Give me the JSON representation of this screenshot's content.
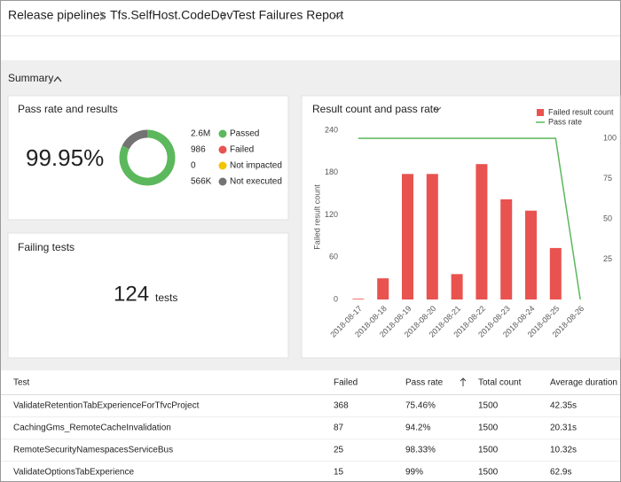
{
  "breadcrumb": {
    "items": [
      "Release pipelines",
      "Tfs.SelfHost.CodeDev",
      "Test Failures Report"
    ]
  },
  "summary": {
    "label": "Summary"
  },
  "pass_rate_card": {
    "title": "Pass rate and results",
    "pass_rate": "99.95%"
  },
  "failing_tests_card": {
    "title": "Failing tests",
    "count": "124",
    "unit": "tests"
  },
  "chart_data": [
    {
      "type": "pie",
      "donut": true,
      "categories": [
        "Passed",
        "Failed",
        "Not impacted",
        "Not executed"
      ],
      "values": [
        2600000,
        986,
        0,
        566000
      ],
      "value_labels": [
        "2.6M",
        "986",
        "0",
        "566K"
      ],
      "colors": [
        "#5cb85c",
        "#e8534f",
        "#f2c500",
        "#737373"
      ]
    },
    {
      "type": "combo",
      "title": "Result count and pass rate",
      "ylabel": "Failed result count",
      "categories": [
        "2018-08-17",
        "2018-08-18",
        "2018-08-19",
        "2018-08-20",
        "2018-08-21",
        "2018-08-22",
        "2018-08-23",
        "2018-08-24",
        "2018-08-25",
        "2018-08-26"
      ],
      "series": [
        {
          "name": "Failed result count",
          "type": "bar",
          "color": "#e8534f",
          "values": [
            1,
            30,
            178,
            178,
            36,
            192,
            142,
            126,
            73,
            0
          ]
        },
        {
          "name": "Pass rate",
          "type": "line",
          "color": "#5cb85c",
          "axis": "y2",
          "values": [
            100,
            100,
            100,
            100,
            100,
            100,
            100,
            100,
            100,
            0
          ]
        }
      ],
      "ylim": [
        0,
        240
      ],
      "yticks": [
        0,
        60,
        120,
        180,
        240
      ],
      "y2lim": [
        0,
        105
      ],
      "y2ticks": [
        25,
        50,
        75,
        100
      ],
      "legend": "top-right"
    }
  ],
  "table": {
    "columns": [
      "Test",
      "Failed",
      "Pass rate",
      "Total count",
      "Average duration"
    ],
    "rows": [
      [
        "ValidateRetentionTabExperienceForTfvcProject",
        "368",
        "75.46%",
        "1500",
        "42.35s"
      ],
      [
        "CachingGms_RemoteCacheInvalidation",
        "87",
        "94.2%",
        "1500",
        "20.31s"
      ],
      [
        "RemoteSecurityNamespacesServiceBus",
        "25",
        "98.33%",
        "1500",
        "10.32s"
      ],
      [
        "ValidateOptionsTabExperience",
        "15",
        "99%",
        "1500",
        "62.9s"
      ]
    ]
  }
}
